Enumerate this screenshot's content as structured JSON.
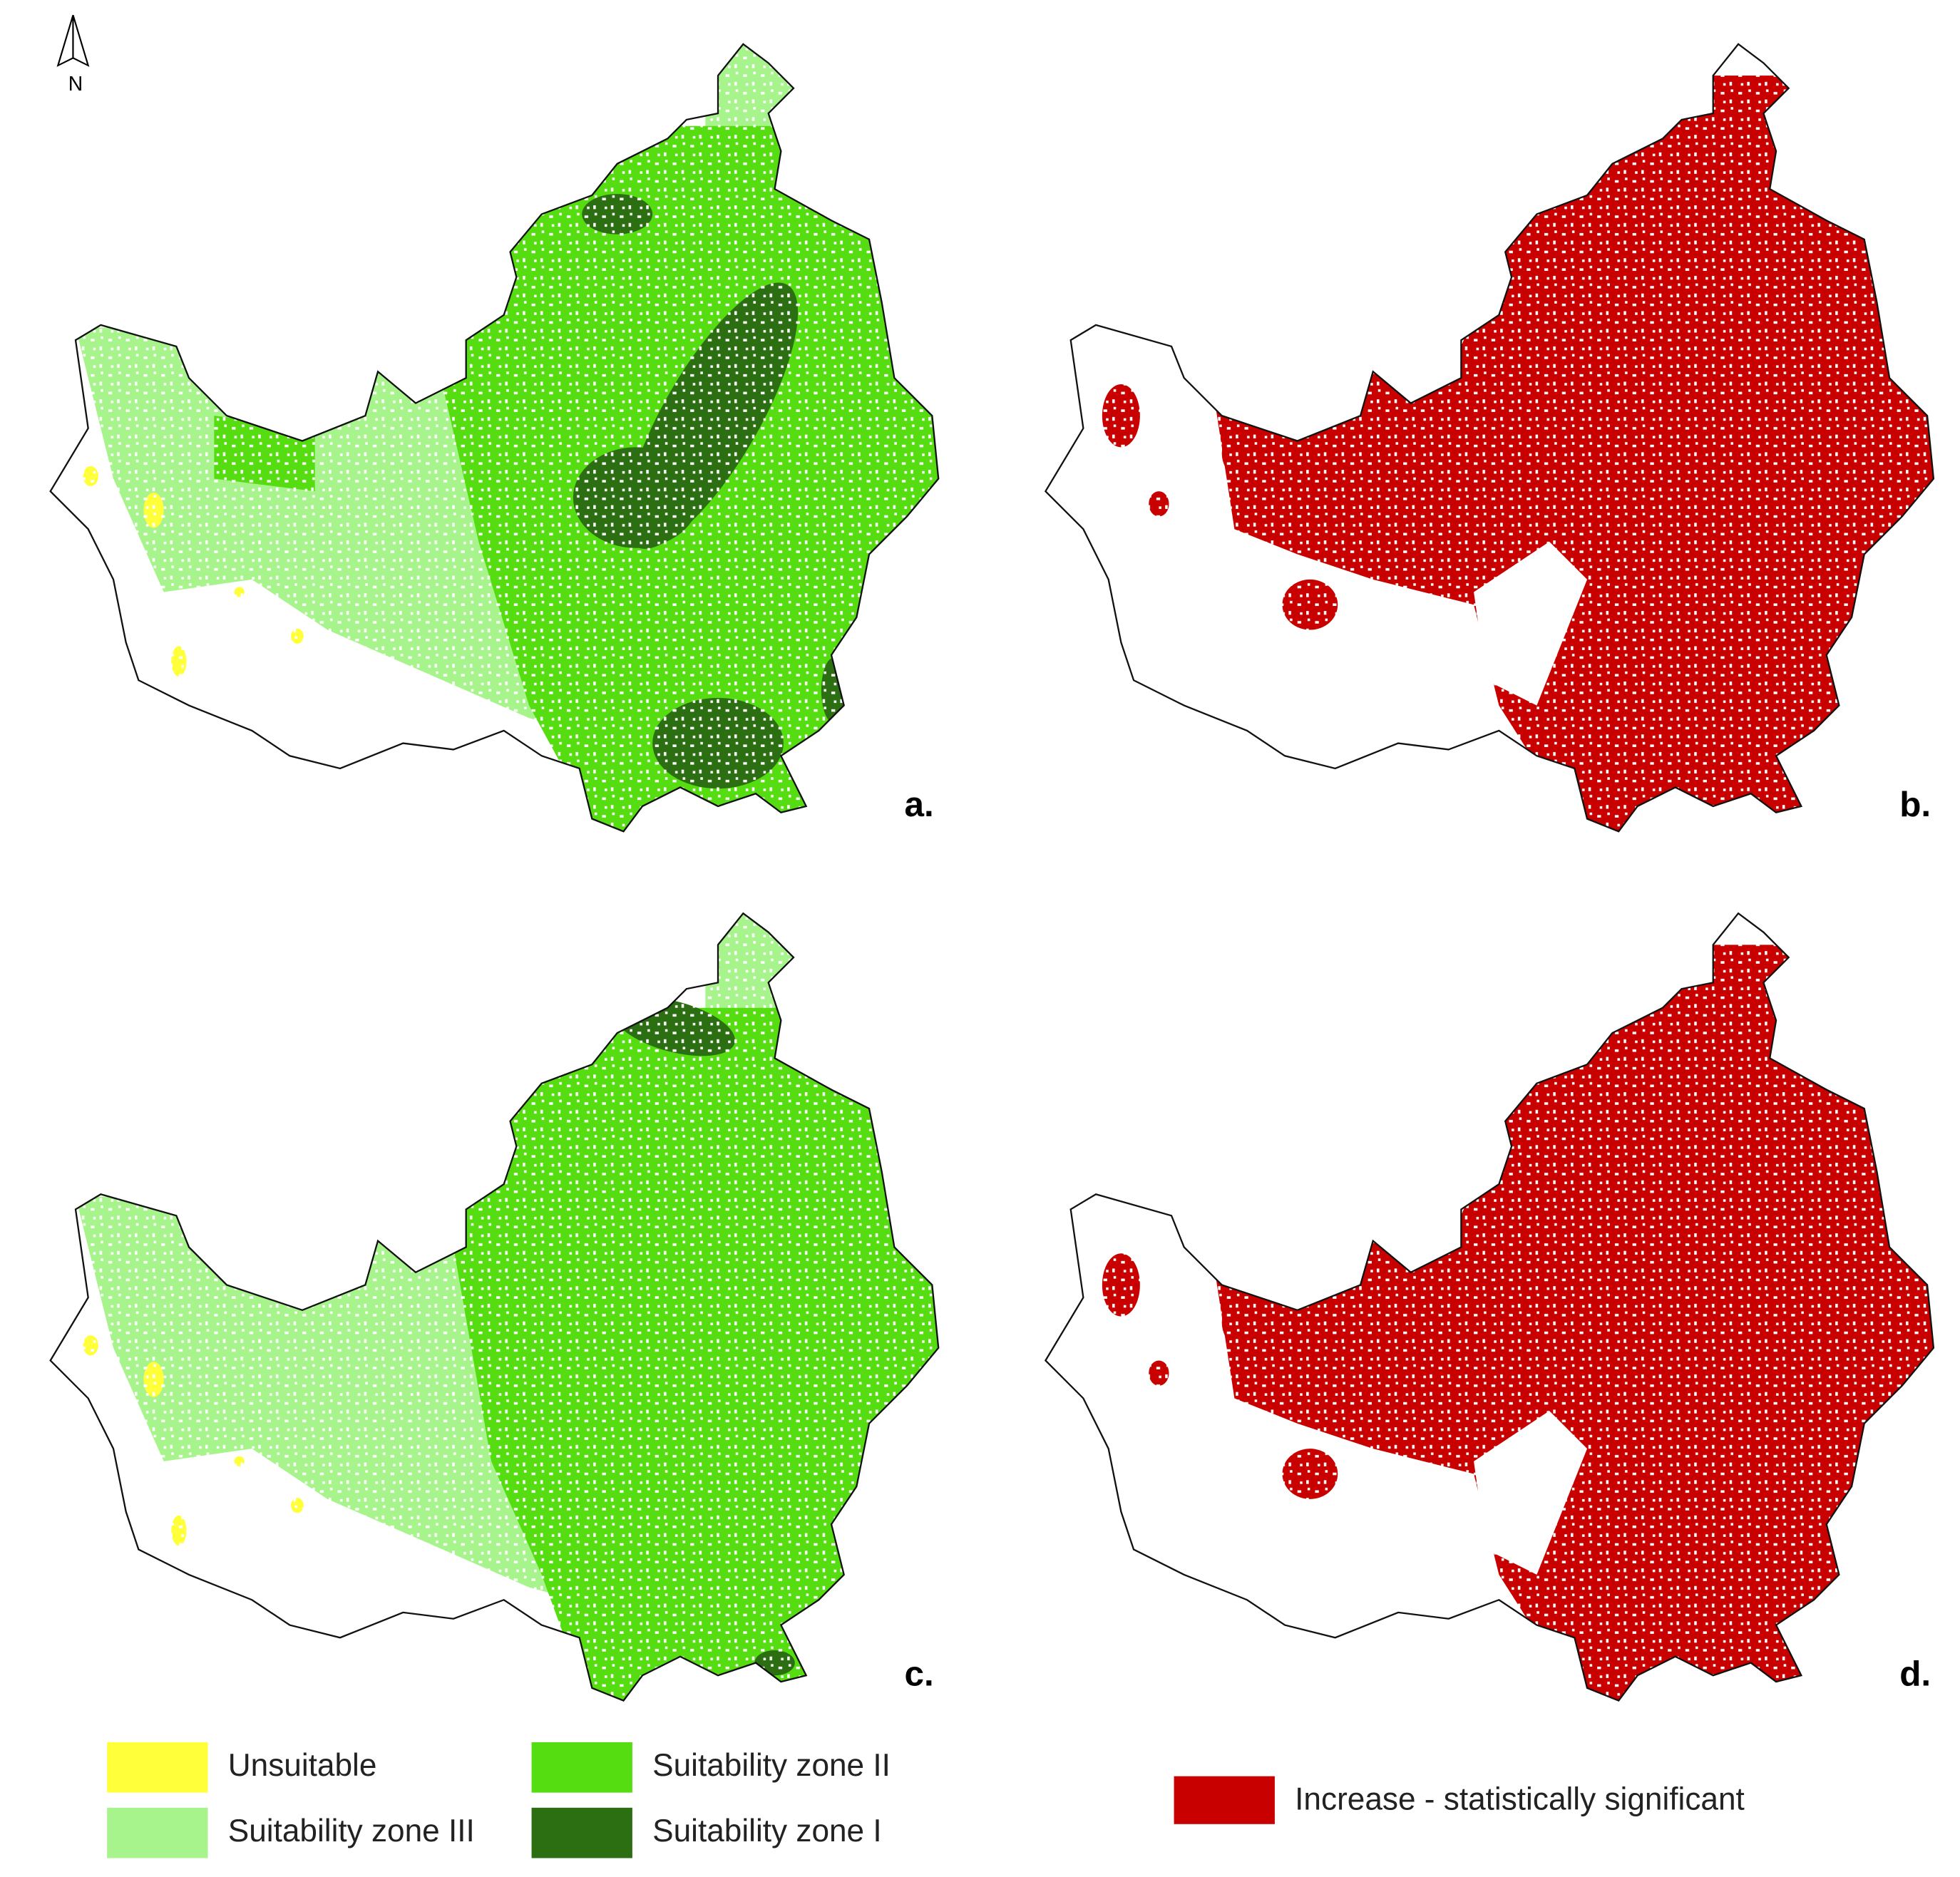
{
  "north_label": "N",
  "panels": [
    {
      "label": "a.",
      "kind": "suitability"
    },
    {
      "label": "b.",
      "kind": "trend"
    },
    {
      "label": "c.",
      "kind": "suitability"
    },
    {
      "label": "d.",
      "kind": "trend"
    }
  ],
  "legend_suitability": [
    {
      "label": "Unsuitable",
      "color": "#ffff3a"
    },
    {
      "label": "Suitability zone II",
      "color": "#55dd11"
    },
    {
      "label": "Suitability zone III",
      "color": "#a8f48c"
    },
    {
      "label": "Suitability zone I",
      "color": "#2c6e12"
    }
  ],
  "legend_trend": [
    {
      "label": "Increase - statistically significant",
      "color": "#c80000"
    }
  ]
}
